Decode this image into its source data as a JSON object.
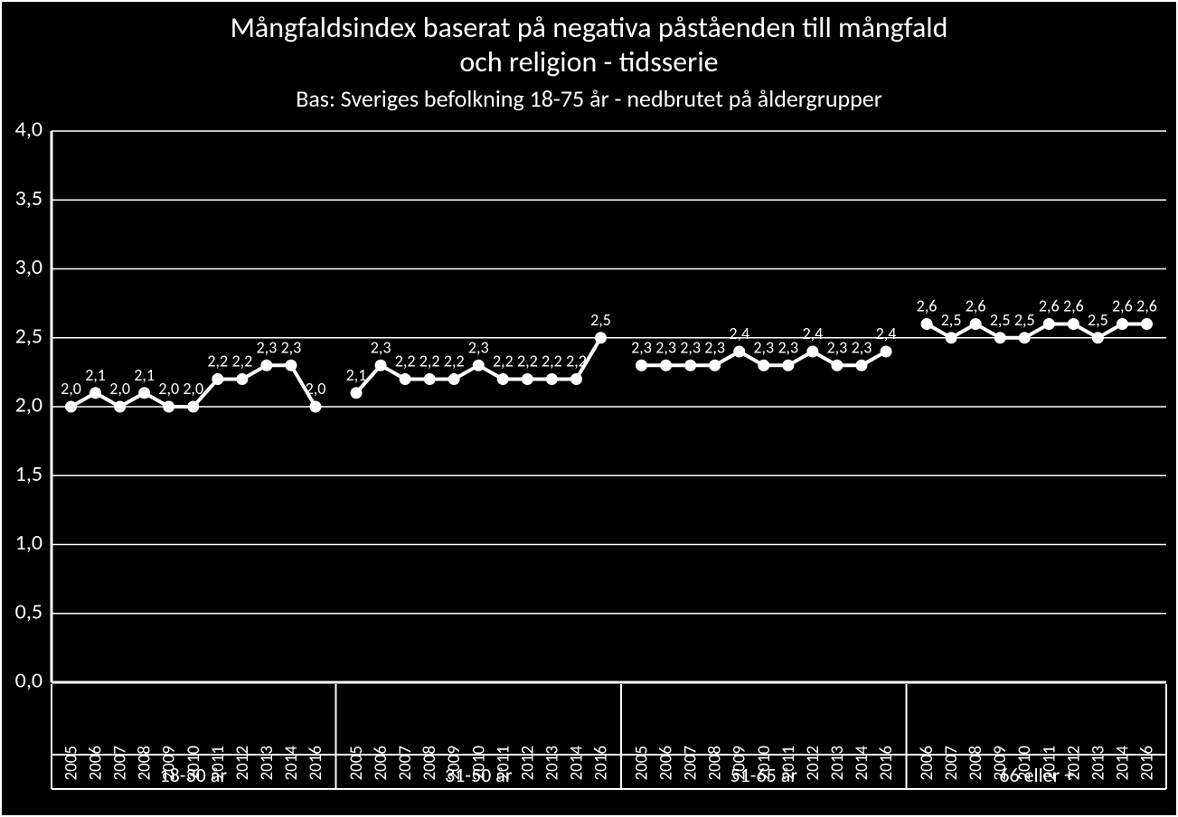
{
  "title_line1": "Mångfaldsindex baserat på negativa påståenden till mångfald",
  "title_line2": "och religion - tidsserie",
  "subtitle": "Bas: Sveriges befolkning 18-75 år - nedbrutet på åldergrupper",
  "chart": {
    "type": "line",
    "background_color": "#000000",
    "line_color": "#ffffff",
    "marker_color": "#ffffff",
    "grid_color": "#ffffff",
    "text_color": "#ffffff",
    "title_fontsize": 32,
    "subtitle_fontsize": 26,
    "ytick_fontsize": 24,
    "xtick_fontsize": 19,
    "data_label_fontsize": 18,
    "group_label_fontsize": 22,
    "ylim": [
      0.0,
      4.0
    ],
    "ytick_step": 0.5,
    "line_width": 4,
    "marker_radius": 6,
    "groups": [
      {
        "label": "18-30 år",
        "years": [
          "2005",
          "2006",
          "2007",
          "2008",
          "2009",
          "2010",
          "2011",
          "2012",
          "2013",
          "2014",
          "2016"
        ],
        "values": [
          2.0,
          2.1,
          2.0,
          2.1,
          2.0,
          2.0,
          2.2,
          2.2,
          2.3,
          2.3,
          2.0
        ],
        "labels": [
          "2,0",
          "2,1",
          "2,0",
          "2,1",
          "2,0",
          "2,0",
          "2,2",
          "2,2",
          "2,3",
          "2,3",
          "2,0"
        ]
      },
      {
        "label": "31-50 år",
        "years": [
          "2005",
          "2006",
          "2007",
          "2008",
          "2009",
          "2010",
          "2011",
          "2012",
          "2013",
          "2014",
          "2016"
        ],
        "values": [
          2.1,
          2.3,
          2.2,
          2.2,
          2.2,
          2.3,
          2.2,
          2.2,
          2.2,
          2.2,
          2.5
        ],
        "labels": [
          "2,1",
          "2,3",
          "2,2",
          "2,2",
          "2,2",
          "2,3",
          "2,2",
          "2,2",
          "2,2",
          "2,2",
          "2,5"
        ]
      },
      {
        "label": "51-65 år",
        "years": [
          "2005",
          "2006",
          "2007",
          "2008",
          "2009",
          "2010",
          "2011",
          "2012",
          "2013",
          "2014",
          "2016"
        ],
        "values": [
          2.3,
          2.3,
          2.3,
          2.3,
          2.4,
          2.3,
          2.3,
          2.4,
          2.3,
          2.3,
          2.4
        ],
        "labels": [
          "2,3",
          "2,3",
          "2,3",
          "2,3",
          "2,4",
          "2,3",
          "2,3",
          "2,4",
          "2,3",
          "2,3",
          "2,4"
        ]
      },
      {
        "label": "66 eller +",
        "years": [
          "2006",
          "2007",
          "2008",
          "2009",
          "2010",
          "2011",
          "2012",
          "2013",
          "2014",
          "2016"
        ],
        "values": [
          2.6,
          2.5,
          2.6,
          2.5,
          2.5,
          2.6,
          2.6,
          2.5,
          2.6,
          2.6
        ],
        "labels": [
          "2,6",
          "2,5",
          "2,6",
          "2,5",
          "2,5",
          "2,6",
          "2,6",
          "2,5",
          "2,6",
          "2,6"
        ]
      }
    ]
  }
}
